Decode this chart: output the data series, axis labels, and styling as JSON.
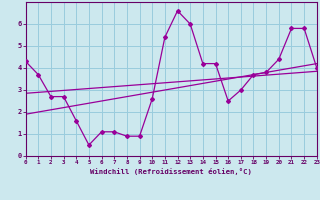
{
  "xlabel": "Windchill (Refroidissement éolien,°C)",
  "bg_color": "#cce8ee",
  "grid_color": "#99ccdd",
  "line_color": "#990099",
  "spine_color": "#660066",
  "tick_color": "#660066",
  "xlim": [
    0,
    23
  ],
  "ylim": [
    0,
    7
  ],
  "xticks": [
    0,
    1,
    2,
    3,
    4,
    5,
    6,
    7,
    8,
    9,
    10,
    11,
    12,
    13,
    14,
    15,
    16,
    17,
    18,
    19,
    20,
    21,
    22,
    23
  ],
  "yticks": [
    0,
    1,
    2,
    3,
    4,
    5,
    6
  ],
  "curve1_x": [
    0,
    1,
    2,
    3,
    4,
    5,
    6,
    7,
    8,
    9,
    10,
    11,
    12,
    13,
    14,
    15,
    16,
    17,
    18,
    19,
    20,
    21,
    22,
    23
  ],
  "curve1_y": [
    4.3,
    3.7,
    2.7,
    2.7,
    1.6,
    0.5,
    1.1,
    1.1,
    0.9,
    0.9,
    2.6,
    5.4,
    6.6,
    6.0,
    4.2,
    4.2,
    2.5,
    3.0,
    3.7,
    3.8,
    4.4,
    5.8,
    5.8,
    4.0
  ],
  "trend1_x": [
    0,
    23
  ],
  "trend1_y": [
    1.9,
    4.2
  ],
  "trend2_x": [
    0,
    23
  ],
  "trend2_y": [
    2.85,
    3.85
  ]
}
